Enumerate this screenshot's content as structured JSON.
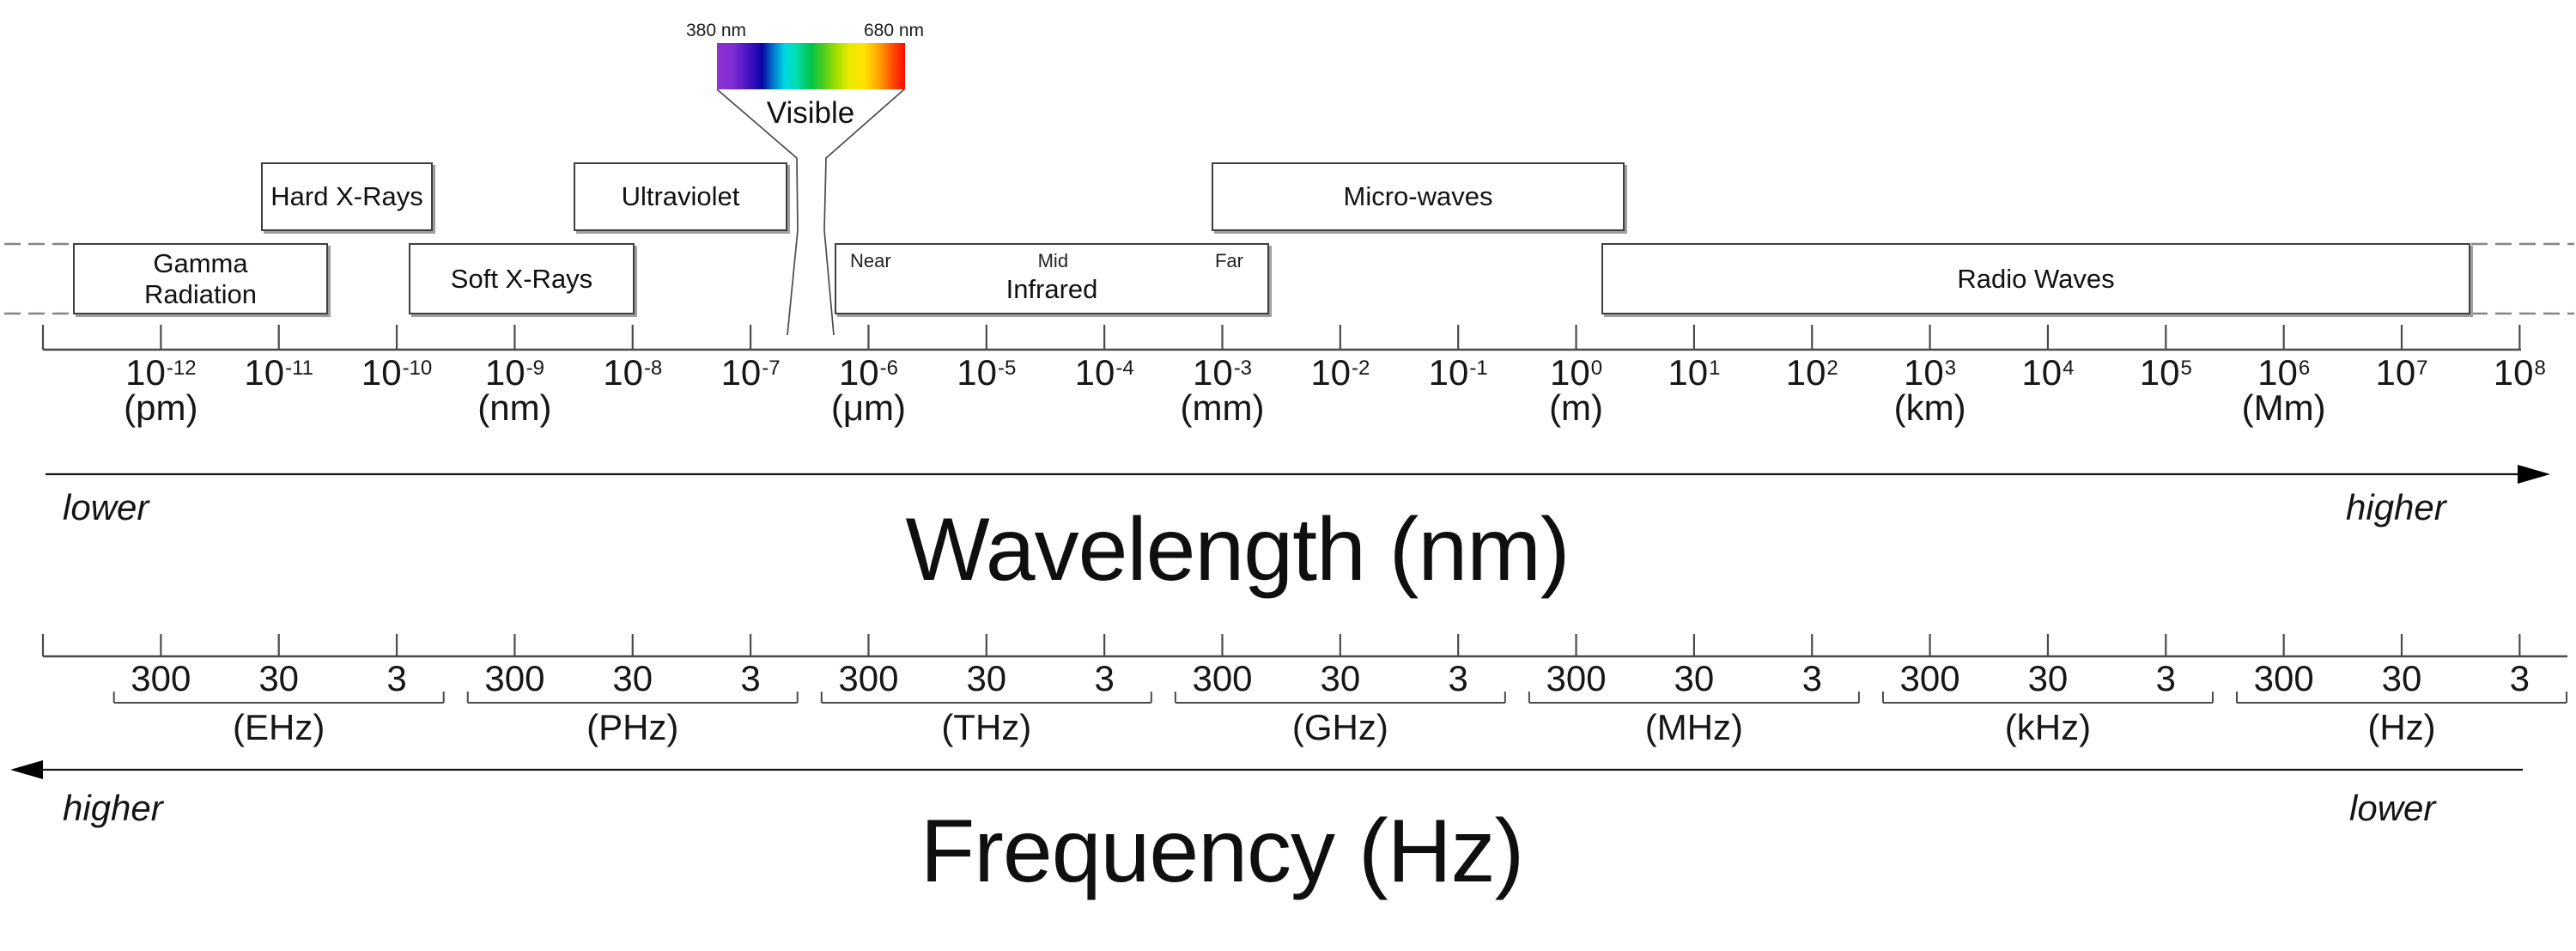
{
  "visible_spectrum": {
    "left_wavelength_label": "380 nm",
    "right_wavelength_label": "680 nm",
    "band_label": "Visible",
    "gradient_stops": [
      "#9132d4 0%",
      "#7b2bd2 9%",
      "#3d10c0 18%",
      "#0a06a6 24%",
      "#0077cc 30%",
      "#00d8e0 36%",
      "#00dfb2 42%",
      "#00c246 50%",
      "#44cc22 56%",
      "#9cdc00 63%",
      "#e8ea00 70%",
      "#ffe400 78%",
      "#ffa400 86%",
      "#ff5000 93%",
      "#fa0a00 100%"
    ]
  },
  "bands": {
    "gamma_line1": "Gamma",
    "gamma_line2": "Radiation",
    "hard_xrays": "Hard X-Rays",
    "soft_xrays": "Soft X-Rays",
    "ultraviolet": "Ultraviolet",
    "infrared": {
      "near": "Near",
      "mid": "Mid",
      "far": "Far",
      "label": "Infrared"
    },
    "microwaves": "Micro-waves",
    "radio_waves": "Radio Waves"
  },
  "wavelength_axis": {
    "base": "10",
    "labels": [
      {
        "exp": "-12",
        "unit": "(pm)"
      },
      {
        "exp": "-11"
      },
      {
        "exp": "-10"
      },
      {
        "exp": "-9",
        "unit": "(nm)"
      },
      {
        "exp": "-8"
      },
      {
        "exp": "-7"
      },
      {
        "exp": "-6",
        "unit": "(μm)"
      },
      {
        "exp": "-5"
      },
      {
        "exp": "-4"
      },
      {
        "exp": "-3",
        "unit": "(mm)"
      },
      {
        "exp": "-2"
      },
      {
        "exp": "-1"
      },
      {
        "exp": "0",
        "unit": "(m)"
      },
      {
        "exp": "1"
      },
      {
        "exp": "2"
      },
      {
        "exp": "3",
        "unit": "(km)"
      },
      {
        "exp": "4"
      },
      {
        "exp": "5"
      },
      {
        "exp": "6",
        "unit": "(Mm)"
      },
      {
        "exp": "7"
      },
      {
        "exp": "8"
      }
    ],
    "direction_left": "lower",
    "direction_right": "higher",
    "title": "Wavelength (nm)"
  },
  "frequency_axis": {
    "groups": [
      {
        "values": [
          "300",
          "30",
          "3"
        ],
        "unit": "(EHz)"
      },
      {
        "values": [
          "300",
          "30",
          "3"
        ],
        "unit": "(PHz)"
      },
      {
        "values": [
          "300",
          "30",
          "3"
        ],
        "unit": "(THz)"
      },
      {
        "values": [
          "300",
          "30",
          "3"
        ],
        "unit": "(GHz)"
      },
      {
        "values": [
          "300",
          "30",
          "3"
        ],
        "unit": "(MHz)"
      },
      {
        "values": [
          "300",
          "30",
          "3"
        ],
        "unit": "(kHz)"
      },
      {
        "values": [
          "300",
          "30",
          "3"
        ],
        "unit": "(Hz)"
      }
    ],
    "direction_left": "higher",
    "direction_right": "lower",
    "title": "Frequency (Hz)"
  },
  "colors": {
    "line": "#4a4a4a",
    "arrow": "#141414",
    "dash": "#858585",
    "text": "#111111"
  }
}
